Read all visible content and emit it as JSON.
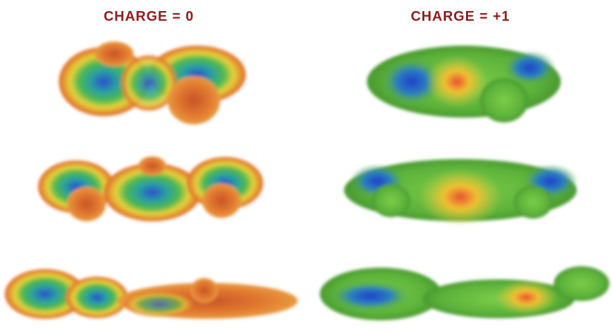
{
  "panels": [
    {
      "title": "CHARGE = 0"
    },
    {
      "title": "CHARGE = +1"
    }
  ]
}
